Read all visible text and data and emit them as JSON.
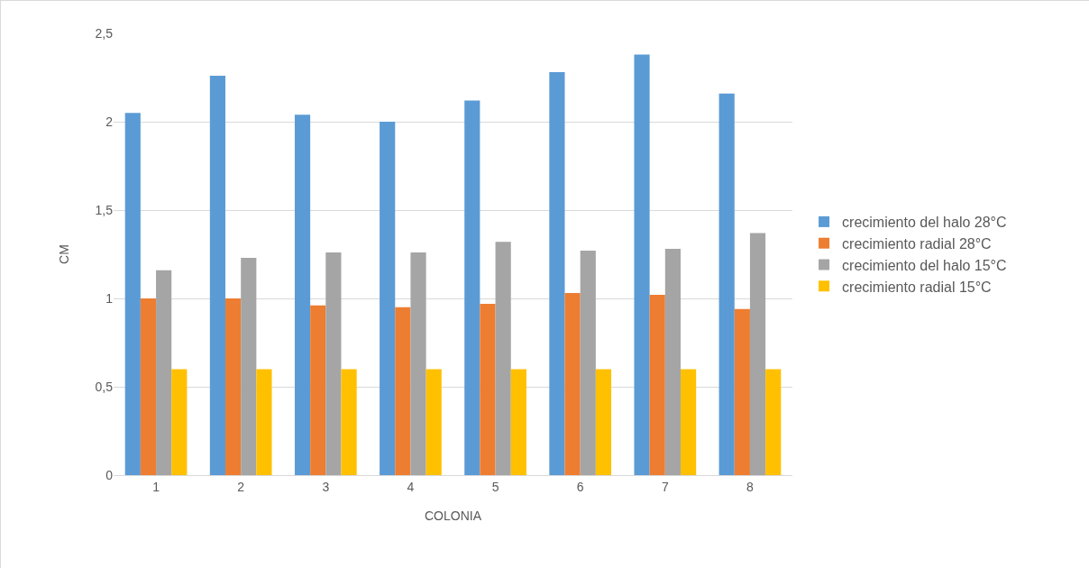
{
  "chart_data": {
    "type": "bar",
    "xlabel": "COLONIA",
    "ylabel": "CM",
    "categories": [
      "1",
      "2",
      "3",
      "4",
      "5",
      "6",
      "7",
      "8"
    ],
    "series": [
      {
        "name": "crecimiento del halo 28°C",
        "color": "#5b9bd5",
        "values": [
          2.05,
          2.26,
          2.04,
          2.0,
          2.12,
          2.28,
          2.38,
          2.16
        ]
      },
      {
        "name": "crecimiento radial 28°C",
        "color": "#ed7d31",
        "values": [
          1.0,
          1.0,
          0.96,
          0.95,
          0.97,
          1.03,
          1.02,
          0.94
        ]
      },
      {
        "name": "crecimiento del halo 15°C",
        "color": "#a5a5a5",
        "values": [
          1.16,
          1.23,
          1.26,
          1.26,
          1.32,
          1.27,
          1.28,
          1.37
        ]
      },
      {
        "name": "crecimiento radial 15°C",
        "color": "#ffc000",
        "values": [
          0.6,
          0.6,
          0.6,
          0.6,
          0.6,
          0.6,
          0.6,
          0.6
        ]
      }
    ],
    "ylim": [
      0,
      2.5
    ],
    "yticks": [
      {
        "value": 0,
        "label": "0"
      },
      {
        "value": 0.5,
        "label": "0,5"
      },
      {
        "value": 1,
        "label": "1"
      },
      {
        "value": 1.5,
        "label": "1,5"
      },
      {
        "value": 2,
        "label": "2"
      },
      {
        "value": 2.5,
        "label": "2,5"
      }
    ],
    "grid": "y",
    "legend": "right"
  }
}
